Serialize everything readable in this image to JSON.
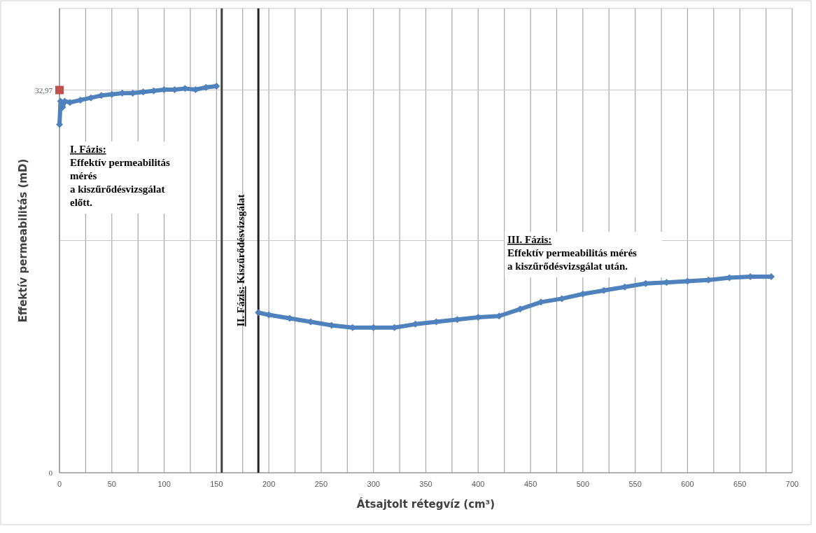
{
  "chart_data": {
    "type": "line",
    "xlabel": "Átsajtolt rétegvíz (cm³)",
    "ylabel": "Effektív permeabilitás (mD)",
    "xlim": [
      0,
      700
    ],
    "ylim": [
      0,
      40
    ],
    "xticks": [
      0,
      {
        "value": 25,
        "label": null
      },
      50,
      {
        "value": 75,
        "label": null
      },
      100,
      {
        "value": 125,
        "label": null
      },
      150,
      {
        "value": 175,
        "label": null
      },
      200,
      {
        "value": 225,
        "label": null
      },
      250,
      {
        "value": 275,
        "label": null
      },
      300,
      {
        "value": 325,
        "label": null
      },
      350,
      {
        "value": 375,
        "label": null
      },
      400,
      {
        "value": 425,
        "label": null
      },
      450,
      {
        "value": 475,
        "label": null
      },
      500,
      {
        "value": 525,
        "label": null
      },
      550,
      {
        "value": 575,
        "label": null
      },
      600,
      {
        "value": 625,
        "label": null
      },
      650,
      {
        "value": 675,
        "label": null
      },
      700
    ],
    "yticks": [
      0,
      {
        "value": 20,
        "label": null
      },
      {
        "value": 32.97,
        "label": "32,97"
      },
      {
        "value": 40,
        "label": null
      }
    ],
    "grid": true,
    "marker": "diamond",
    "line_style": "solid",
    "series": [
      {
        "color": "#4f81bd",
        "x": [
          0,
          1,
          3,
          5,
          10,
          20,
          30,
          40,
          50,
          60,
          70,
          80,
          90,
          100,
          110,
          120,
          130,
          140,
          150,
          170,
          190,
          200,
          220,
          240,
          260,
          280,
          300,
          320,
          340,
          360,
          380,
          400,
          420,
          440,
          460,
          480,
          500,
          520,
          540,
          560,
          580,
          600,
          620,
          640,
          660,
          680
        ],
        "values": [
          30.0,
          32.0,
          31.5,
          32.0,
          31.9,
          32.1,
          32.3,
          32.5,
          32.6,
          32.7,
          32.7,
          32.8,
          32.9,
          33.0,
          33.0,
          33.1,
          33.0,
          33.2,
          33.3,
          null,
          13.8,
          13.6,
          13.3,
          13.0,
          12.7,
          12.5,
          12.5,
          12.5,
          12.8,
          13.0,
          13.2,
          13.4,
          13.5,
          14.1,
          14.7,
          15.0,
          15.4,
          15.7,
          16.0,
          16.3,
          16.4,
          16.5,
          16.6,
          16.8,
          16.9,
          16.9
        ]
      },
      {
        "type": "scatter",
        "color": "#c0504d",
        "marker": "square",
        "x": [
          0
        ],
        "values": [
          32.97
        ]
      }
    ],
    "ref_lines": [
      {
        "axis": "x",
        "value": 155,
        "color": "#404040"
      },
      {
        "axis": "x",
        "value": 190,
        "color": "#202020"
      }
    ],
    "annotations": [
      "I. Fázis:\nEffektív permeabilitás\nmérés\na kiszűrődésvizsgálat\nelőtt.",
      "II. Fázis: Kiszűrődésvizsgálat",
      "III. Fázis:\nEffektív permeabilitás mérés\na kiszűrődésvizsgálat után."
    ]
  }
}
